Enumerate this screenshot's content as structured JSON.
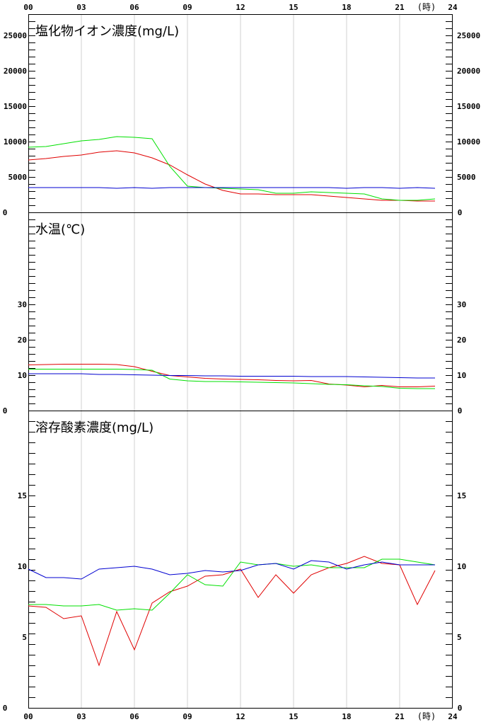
{
  "x_ticks": [
    "00",
    "03",
    "06",
    "09",
    "12",
    "15",
    "18",
    "21",
    "24"
  ],
  "x_unit": "(時)",
  "colors": {
    "red": "#e00000",
    "green": "#00e000",
    "blue": "#0000d0",
    "grid": "#d0d0d0"
  },
  "chart_data": [
    {
      "type": "line",
      "title": "塩化物イオン濃度(mg/L)",
      "ylim": [
        0,
        28000
      ],
      "yticks": [
        0,
        5000,
        10000,
        15000,
        20000,
        25000
      ],
      "x": [
        0,
        1,
        2,
        3,
        4,
        5,
        6,
        7,
        8,
        9,
        10,
        11,
        12,
        13,
        14,
        15,
        16,
        17,
        18,
        19,
        20,
        21,
        22,
        23
      ],
      "series": [
        {
          "color": "red",
          "values": [
            7400,
            7600,
            7900,
            8100,
            8500,
            8700,
            8400,
            7700,
            6700,
            5300,
            4000,
            3100,
            2600,
            2600,
            2500,
            2500,
            2500,
            2300,
            2100,
            1900,
            1700,
            1700,
            1600,
            1600
          ]
        },
        {
          "color": "green",
          "values": [
            9200,
            9300,
            9700,
            10100,
            10300,
            10700,
            10600,
            10400,
            6500,
            3700,
            3500,
            3400,
            3300,
            3200,
            2700,
            2700,
            2900,
            2800,
            2700,
            2600,
            1900,
            1700,
            1700,
            1900
          ]
        },
        {
          "color": "blue",
          "values": [
            3500,
            3500,
            3500,
            3500,
            3500,
            3400,
            3500,
            3400,
            3500,
            3500,
            3500,
            3500,
            3500,
            3500,
            3500,
            3500,
            3500,
            3500,
            3400,
            3500,
            3500,
            3400,
            3500,
            3400
          ]
        }
      ]
    },
    {
      "type": "line",
      "title": "水温(℃)",
      "ylim": [
        0,
        56
      ],
      "yticks": [
        0,
        10,
        20,
        30
      ],
      "x": [
        0,
        1,
        2,
        3,
        4,
        5,
        6,
        7,
        8,
        9,
        10,
        11,
        12,
        13,
        14,
        15,
        16,
        17,
        18,
        19,
        20,
        21,
        22,
        23
      ],
      "series": [
        {
          "color": "red",
          "values": [
            12.9,
            13.0,
            13.1,
            13.1,
            13.1,
            13.0,
            12.4,
            11.1,
            9.9,
            9.5,
            9.1,
            8.9,
            8.8,
            8.7,
            8.5,
            8.4,
            8.5,
            7.5,
            7.2,
            6.7,
            7.1,
            6.7,
            6.7,
            6.9
          ]
        },
        {
          "color": "green",
          "values": [
            11.7,
            11.7,
            11.7,
            11.7,
            11.7,
            11.7,
            11.6,
            11.4,
            8.9,
            8.4,
            8.2,
            8.2,
            8.1,
            8.0,
            7.9,
            7.8,
            7.6,
            7.4,
            7.3,
            7.0,
            6.8,
            6.3,
            6.2,
            6.2
          ]
        },
        {
          "color": "blue",
          "values": [
            10.4,
            10.4,
            10.4,
            10.4,
            10.2,
            10.2,
            10.1,
            10.0,
            9.9,
            9.9,
            9.8,
            9.8,
            9.7,
            9.7,
            9.7,
            9.7,
            9.6,
            9.6,
            9.6,
            9.5,
            9.4,
            9.3,
            9.2,
            9.2
          ]
        }
      ]
    },
    {
      "type": "line",
      "title": "溶存酸素濃度(mg/L)",
      "ylim": [
        0,
        21
      ],
      "yticks": [
        0,
        5,
        10,
        15
      ],
      "x": [
        0,
        1,
        2,
        3,
        4,
        5,
        6,
        7,
        8,
        9,
        10,
        11,
        12,
        13,
        14,
        15,
        16,
        17,
        18,
        19,
        20,
        21,
        22,
        23
      ],
      "series": [
        {
          "color": "red",
          "values": [
            7.2,
            7.1,
            6.3,
            6.5,
            3.0,
            6.8,
            4.1,
            7.4,
            8.2,
            8.6,
            9.3,
            9.4,
            9.8,
            7.8,
            9.4,
            8.1,
            9.4,
            9.9,
            10.2,
            10.7,
            10.2,
            10.1,
            7.3,
            9.7
          ]
        },
        {
          "color": "green",
          "values": [
            7.3,
            7.3,
            7.2,
            7.2,
            7.3,
            6.9,
            7.0,
            6.9,
            8.1,
            9.4,
            8.7,
            8.6,
            10.3,
            10.1,
            10.2,
            10.0,
            10.1,
            9.9,
            9.9,
            9.9,
            10.5,
            10.5,
            10.3,
            10.1
          ]
        },
        {
          "color": "blue",
          "values": [
            9.8,
            9.2,
            9.2,
            9.1,
            9.8,
            9.9,
            10.0,
            9.8,
            9.4,
            9.5,
            9.7,
            9.6,
            9.7,
            10.1,
            10.2,
            9.8,
            10.4,
            10.3,
            9.8,
            10.1,
            10.3,
            10.1,
            10.1,
            10.1
          ]
        }
      ]
    }
  ]
}
